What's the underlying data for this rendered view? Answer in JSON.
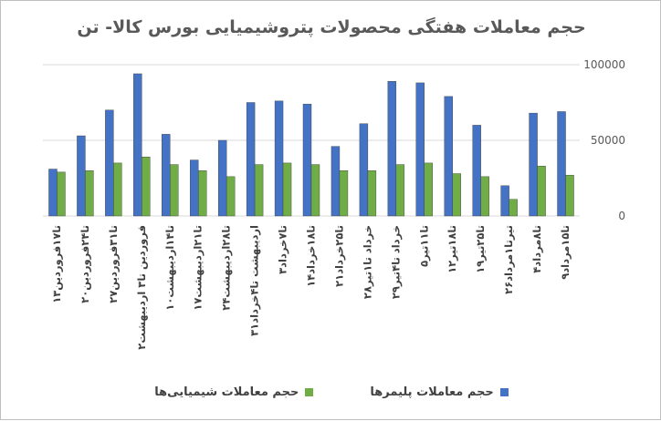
{
  "chart_data": {
    "type": "bar",
    "title": "حجم معاملات هفتگی محصولات پتروشیمیایی بورس کالا- تن",
    "categories": [
      "۱۳تا۱۷فروردین",
      "۲۰تا۲۴فروردین",
      "۲۷تا۳۱فروردین",
      "۲فروردین تا۳ اردیبهشت",
      "۱۰تا۱۴اردیبهشت",
      "۱۷تا۲۱اردیبهشت",
      "۲۴تا۲۸اردیبهشت",
      "۳۱اردیبهشت تا۴خرداد",
      "۳تا۷خرداد",
      "۱۴تا۱۸خرداد",
      "۲۱تا۲۵خرداد",
      "۲۸خرداد تا۱تیر",
      "۲۹خرداد تا۴تیر",
      "۵تا۱۱تیر",
      "۱۲تا۱۸تیر",
      "۱۹تا۲۵تیر",
      "۲۶تیرتا۱مرداد",
      "۴تا۸مرداد",
      "۹تا۱۵مرداد"
    ],
    "series": [
      {
        "name": "حجم معاملات پلیمرها",
        "color": "#4472c4",
        "values": [
          31000,
          53000,
          70000,
          94000,
          54000,
          37000,
          50000,
          75000,
          76000,
          74000,
          46000,
          61000,
          89000,
          88000,
          79000,
          60000,
          20000,
          68000,
          69000
        ]
      },
      {
        "name": "حجم معاملات شیمیایی‌ها",
        "color": "#70ad47",
        "values": [
          29000,
          30000,
          35000,
          39000,
          34000,
          30000,
          26000,
          34000,
          35000,
          34000,
          30000,
          30000,
          34000,
          35000,
          28000,
          26000,
          11000,
          33000,
          27000
        ]
      }
    ],
    "y_ticks": [
      "0",
      "50000",
      "100000"
    ],
    "ylim": [
      0,
      100000
    ],
    "xlabel": "",
    "ylabel": "",
    "grid": true,
    "legend_position": "bottom"
  }
}
